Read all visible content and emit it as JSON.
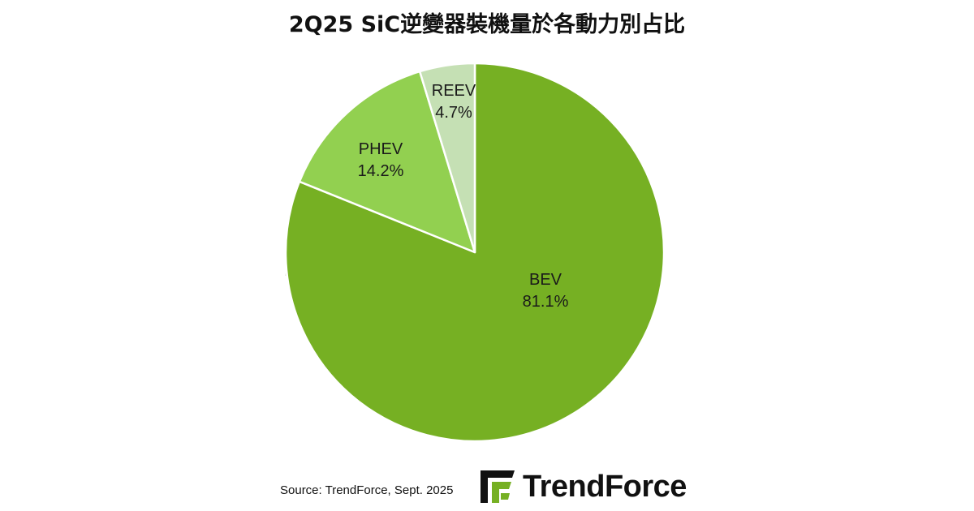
{
  "title": "2Q25 SiC逆變器裝機量於各動力別占比",
  "chart_data": {
    "type": "pie",
    "title": "2Q25 SiC逆變器裝機量於各動力別占比",
    "slices": [
      {
        "label": "BEV",
        "value": 81.1,
        "display": "81.1%",
        "color": "#76b023"
      },
      {
        "label": "PHEV",
        "value": 14.2,
        "display": "14.2%",
        "color": "#92d050"
      },
      {
        "label": "REEV",
        "value": 4.7,
        "display": "4.7%",
        "color": "#c5e0b4"
      }
    ],
    "start": "12 o'clock",
    "direction": "clockwise",
    "legend": "none",
    "data_labels": "inside slices"
  },
  "source": "Source: TrendForce, Sept. 2025",
  "brand": {
    "name": "TrendForce",
    "color": "#76b023"
  },
  "watermark": "TrendForce"
}
